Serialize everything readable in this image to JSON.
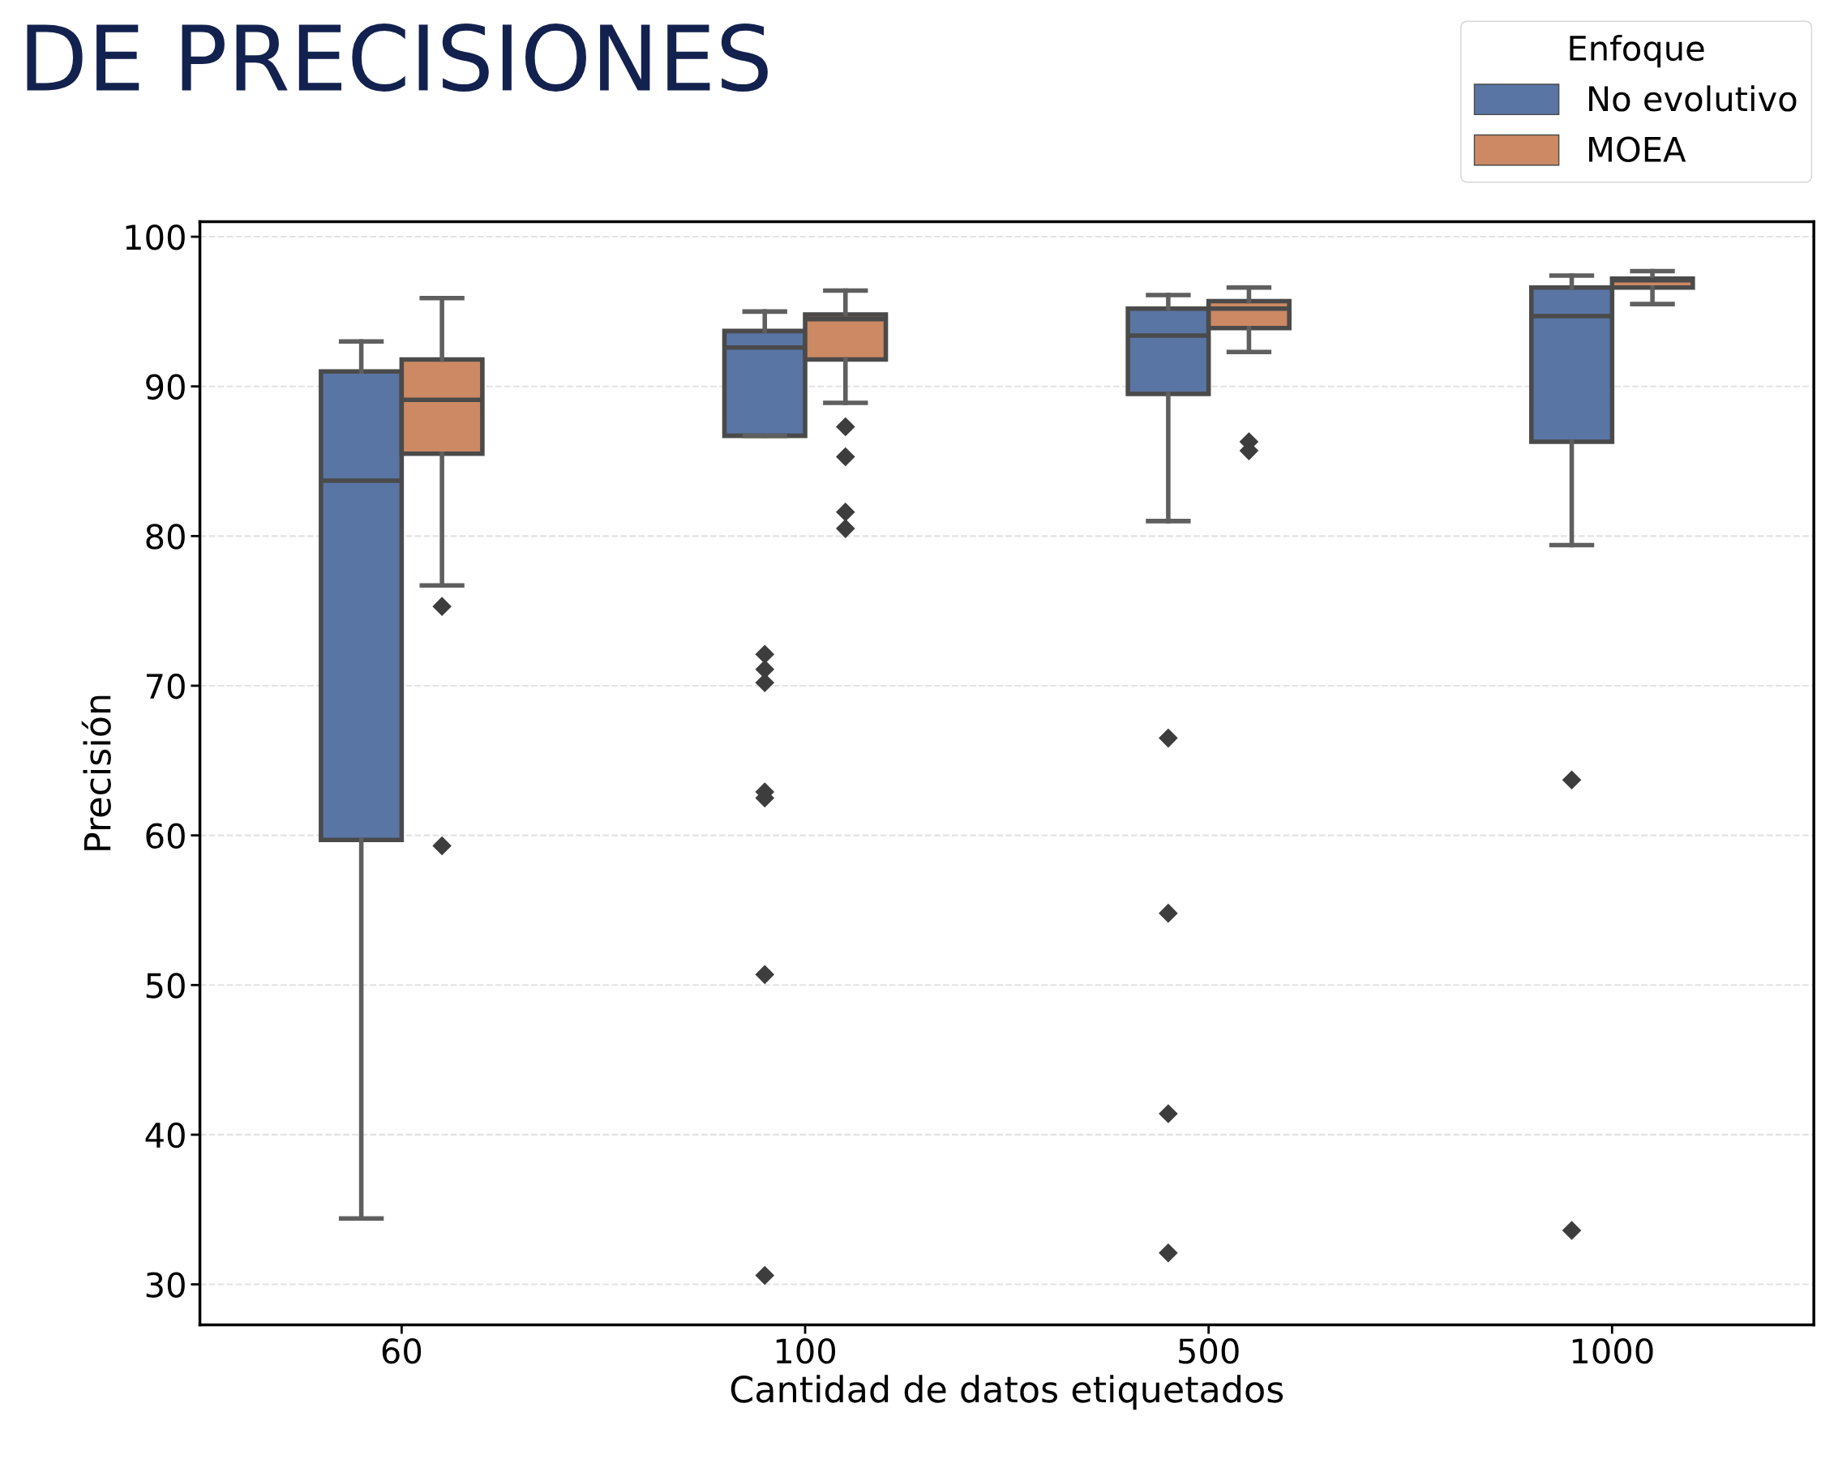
{
  "chart_data": {
    "type": "box",
    "title": "DE PRECISIONES",
    "xlabel": "Cantidad de datos etiquetados",
    "ylabel": "Precisión",
    "legend_title": "Enfoque",
    "legend": "top right",
    "categories": [
      "60",
      "100",
      "500",
      "1000"
    ],
    "ylim": [
      27.3,
      101
    ],
    "yticks": [
      30,
      40,
      50,
      60,
      70,
      80,
      90,
      100
    ],
    "grid": "y",
    "marker": "diamond",
    "series": [
      {
        "name": "No evolutivo",
        "color": "#5975a4",
        "boxes": [
          {
            "low": 34.4,
            "q1": 59.7,
            "median": 83.7,
            "q3": 91.0,
            "high": 93.0
          },
          {
            "low": 86.7,
            "q1": 86.7,
            "median": 92.6,
            "q3": 93.7,
            "high": 95.0,
            "outliers": [
              72.1,
              71.1,
              70.2,
              62.9,
              62.5,
              50.7,
              30.6
            ]
          },
          {
            "low": 81.0,
            "q1": 89.5,
            "median": 93.4,
            "q3": 95.2,
            "high": 96.1,
            "outliers": [
              66.5,
              54.8,
              41.4,
              32.1
            ]
          },
          {
            "low": 79.4,
            "q1": 86.3,
            "median": 94.7,
            "q3": 96.6,
            "high": 97.4,
            "outliers": [
              63.7,
              33.6
            ]
          }
        ]
      },
      {
        "name": "MOEA",
        "color": "#cc8963",
        "boxes": [
          {
            "low": 76.7,
            "q1": 85.5,
            "median": 89.1,
            "q3": 91.8,
            "high": 95.9,
            "outliers": [
              75.3,
              59.3
            ]
          },
          {
            "low": 88.9,
            "q1": 91.8,
            "median": 94.5,
            "q3": 94.8,
            "high": 96.4,
            "outliers": [
              87.3,
              85.3,
              81.6,
              80.5
            ]
          },
          {
            "low": 92.3,
            "q1": 93.9,
            "median": 95.2,
            "q3": 95.7,
            "high": 96.6,
            "outliers": [
              86.3,
              85.7
            ]
          },
          {
            "low": 95.5,
            "q1": 96.6,
            "median": 97.1,
            "q3": 97.2,
            "high": 97.7
          }
        ]
      }
    ]
  }
}
